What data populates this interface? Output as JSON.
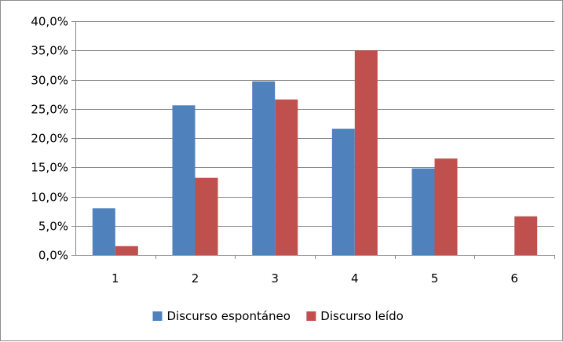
{
  "chart_data": {
    "type": "bar",
    "categories": [
      "1",
      "2",
      "3",
      "4",
      "5",
      "6"
    ],
    "series": [
      {
        "name": "Discurso espontáneo",
        "color": "#4f81bd",
        "values": [
          8.0,
          25.6,
          29.7,
          21.6,
          14.8,
          0.0
        ]
      },
      {
        "name": "Discurso leído",
        "color": "#c0504d",
        "values": [
          1.5,
          13.2,
          26.6,
          35.0,
          16.5,
          6.6
        ]
      }
    ],
    "y_ticks": [
      "0,0%",
      "5,0%",
      "10,0%",
      "15,0%",
      "20,0%",
      "25,0%",
      "30,0%",
      "35,0%",
      "40,0%"
    ],
    "ylim": [
      0,
      40
    ],
    "y_step": 5,
    "grid": true,
    "gridline_color": "#868686",
    "legend_position": "bottom",
    "title": "",
    "xlabel": "",
    "ylabel": ""
  }
}
